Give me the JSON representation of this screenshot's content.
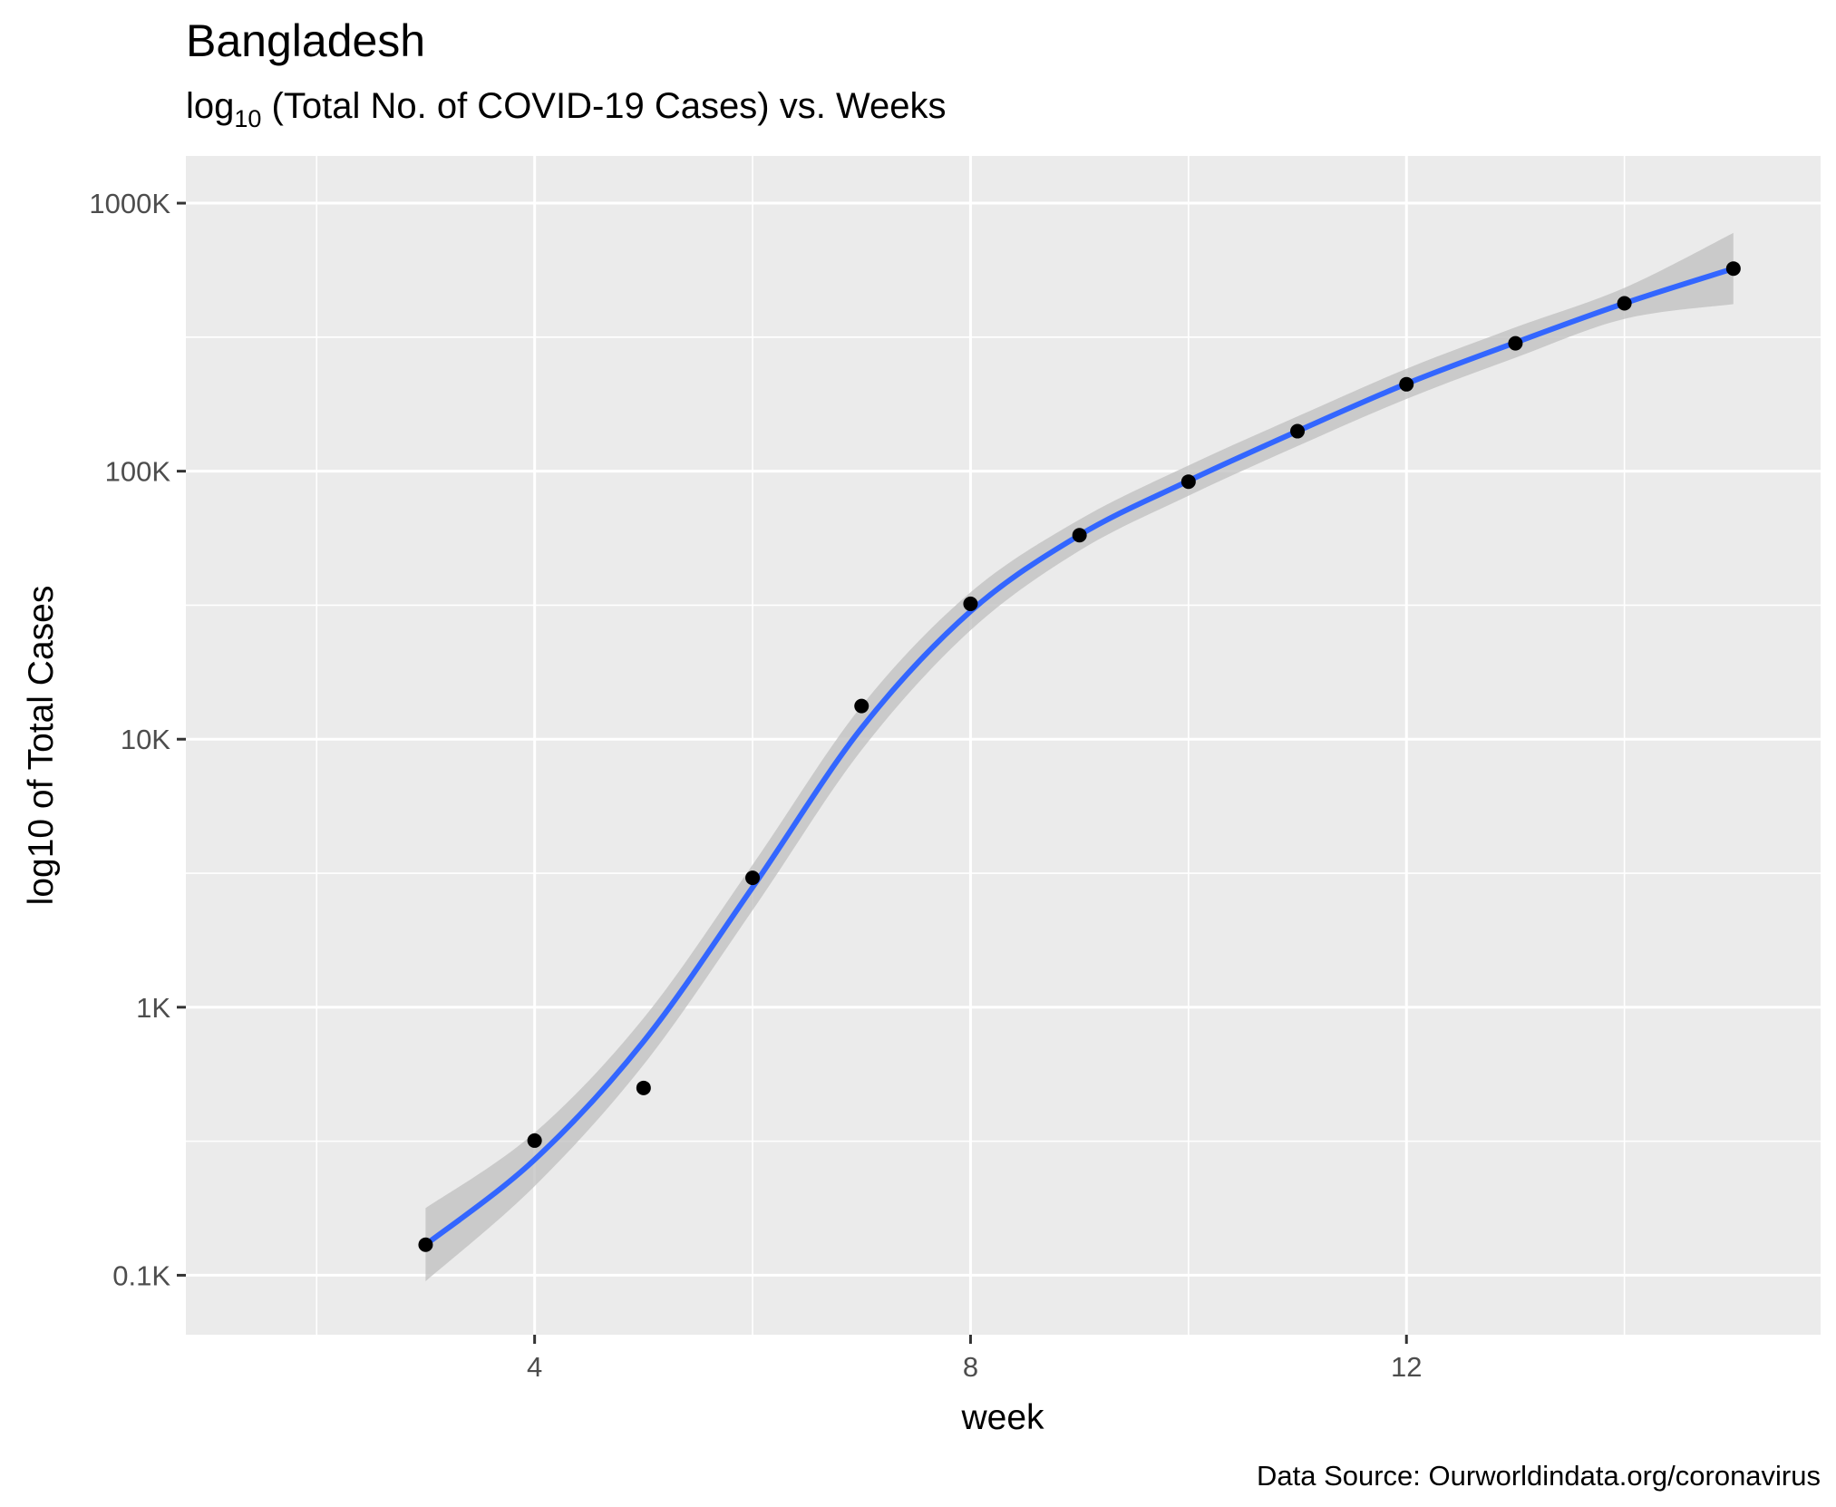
{
  "chart_data": {
    "type": "scatter",
    "title": "Bangladesh",
    "subtitle_prefix": "log",
    "subtitle_sub": "10",
    "subtitle_rest": " (Total No. of COVID-19 Cases) vs. Weeks",
    "xlabel": "week",
    "ylabel": "log10 of Total Cases",
    "caption": "Data Source: Ourworldindata.org/coronavirus",
    "x_scale": "linear",
    "y_scale": "log10",
    "xlim": [
      0.8,
      15.8
    ],
    "ylim": [
      60,
      1500000
    ],
    "x_major_ticks": [
      4,
      8,
      12
    ],
    "x_minor_ticks": [
      2,
      6,
      10,
      14
    ],
    "y_major_ticks": [
      {
        "value": 100,
        "label": "0.1K"
      },
      {
        "value": 1000,
        "label": "1K"
      },
      {
        "value": 10000,
        "label": "10K"
      },
      {
        "value": 100000,
        "label": "100K"
      },
      {
        "value": 1000000,
        "label": "1000K"
      }
    ],
    "grid": true,
    "points": [
      {
        "x": 3,
        "y": 130
      },
      {
        "x": 4,
        "y": 318
      },
      {
        "x": 5,
        "y": 500
      },
      {
        "x": 6,
        "y": 3040
      },
      {
        "x": 7,
        "y": 13300
      },
      {
        "x": 8,
        "y": 32000
      },
      {
        "x": 9,
        "y": 57700
      },
      {
        "x": 10,
        "y": 91400
      },
      {
        "x": 11,
        "y": 141000
      },
      {
        "x": 12,
        "y": 211000
      },
      {
        "x": 13,
        "y": 300000
      },
      {
        "x": 14,
        "y": 423000
      },
      {
        "x": 15,
        "y": 570000
      }
    ],
    "smooth_line": [
      {
        "x": 3,
        "y": 130,
        "ymin": 95,
        "ymax": 178
      },
      {
        "x": 4,
        "y": 270,
        "ymin": 215,
        "ymax": 340
      },
      {
        "x": 5,
        "y": 745,
        "ymin": 610,
        "ymax": 910
      },
      {
        "x": 6,
        "y": 2800,
        "ymin": 2300,
        "ymax": 3400
      },
      {
        "x": 7,
        "y": 11000,
        "ymin": 9100,
        "ymax": 13300
      },
      {
        "x": 8,
        "y": 30000,
        "ymin": 25500,
        "ymax": 35300
      },
      {
        "x": 9,
        "y": 57700,
        "ymin": 50500,
        "ymax": 66000
      },
      {
        "x": 10,
        "y": 92000,
        "ymin": 81000,
        "ymax": 105000
      },
      {
        "x": 11,
        "y": 141000,
        "ymin": 124000,
        "ymax": 160000
      },
      {
        "x": 12,
        "y": 212000,
        "ymin": 186000,
        "ymax": 241000
      },
      {
        "x": 13,
        "y": 302000,
        "ymin": 265000,
        "ymax": 344000
      },
      {
        "x": 14,
        "y": 423000,
        "ymin": 370000,
        "ymax": 483000
      },
      {
        "x": 15,
        "y": 570000,
        "ymin": 420000,
        "ymax": 774000
      }
    ],
    "colors": {
      "panel": "#ebebeb",
      "grid": "#ffffff",
      "points": "#000000",
      "line": "#3366ff",
      "ribbon": "#bfbfbf"
    }
  }
}
